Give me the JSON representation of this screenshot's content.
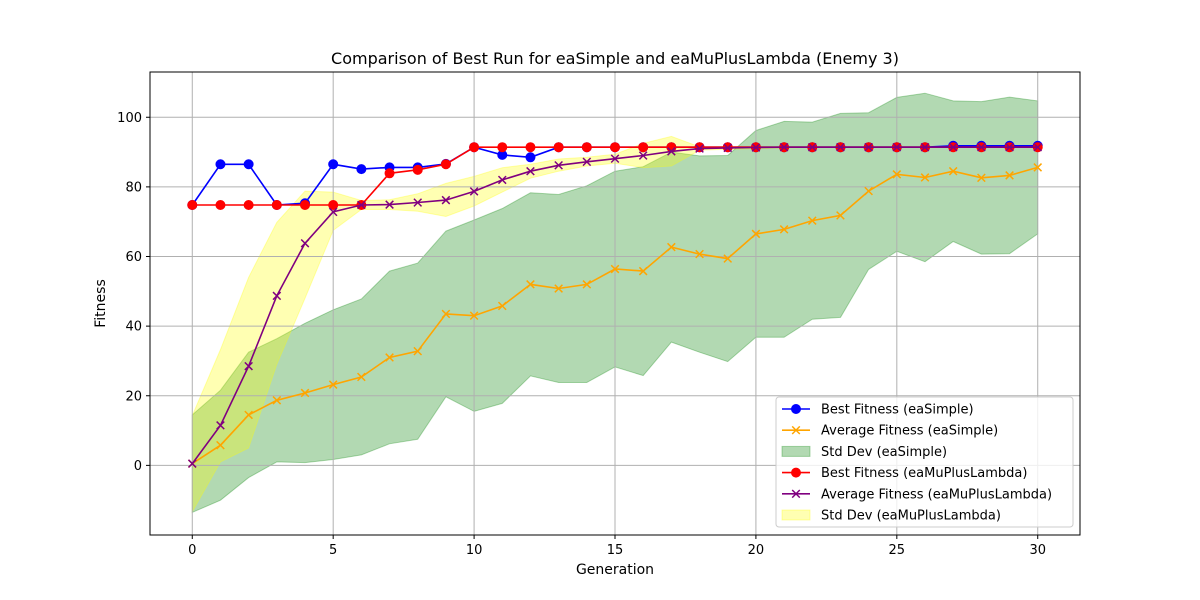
{
  "chart_data": {
    "type": "line",
    "title": "Comparison of Best Run for eaSimple and eaMuPlusLambda (Enemy 3)",
    "xlabel": "Generation",
    "ylabel": "Fitness",
    "xlim": [
      -1.5,
      31.5
    ],
    "ylim": [
      -20,
      113
    ],
    "xticks": [
      0,
      5,
      10,
      15,
      20,
      25,
      30
    ],
    "yticks": [
      0,
      20,
      40,
      60,
      80,
      100
    ],
    "grid": true,
    "legend_position": "lower-right",
    "x": [
      0,
      1,
      2,
      3,
      4,
      5,
      6,
      7,
      8,
      9,
      10,
      11,
      12,
      13,
      14,
      15,
      16,
      17,
      18,
      19,
      20,
      21,
      22,
      23,
      24,
      25,
      26,
      27,
      28,
      29,
      30
    ],
    "series": [
      {
        "name": "Best Fitness (eaSimple)",
        "kind": "line",
        "marker": "o",
        "color": "#0000ff",
        "values": [
          74.8,
          86.5,
          86.5,
          74.8,
          75.3,
          86.5,
          85.1,
          85.6,
          85.6,
          86.6,
          91.4,
          89.2,
          88.5,
          91.4,
          91.4,
          91.4,
          91.4,
          91.4,
          91.4,
          91.4,
          91.4,
          91.4,
          91.4,
          91.4,
          91.4,
          91.4,
          91.4,
          91.8,
          91.8,
          91.8,
          91.8
        ]
      },
      {
        "name": "Average Fitness (eaSimple)",
        "kind": "line",
        "marker": "x",
        "color": "#ffa500",
        "values": [
          0.5,
          5.8,
          14.5,
          18.7,
          20.8,
          23.2,
          25.4,
          31.0,
          32.8,
          43.5,
          43.0,
          45.8,
          52.0,
          50.8,
          52.0,
          56.4,
          55.8,
          62.7,
          60.7,
          59.4,
          66.5,
          67.8,
          70.3,
          71.8,
          78.8,
          83.6,
          82.7,
          84.5,
          82.6,
          83.3,
          85.6
        ]
      },
      {
        "name": "Std Dev (eaSimple)",
        "kind": "band",
        "color": "#008000",
        "alpha": 0.3,
        "lower": [
          -13.5,
          -10.0,
          -3.5,
          1.0,
          0.8,
          1.7,
          3.0,
          6.2,
          7.5,
          19.7,
          15.5,
          17.8,
          25.7,
          23.8,
          23.8,
          28.3,
          25.8,
          35.4,
          32.5,
          29.8,
          36.8,
          36.8,
          42.0,
          42.5,
          56.3,
          61.5,
          58.5,
          64.3,
          60.7,
          60.8,
          66.5
        ],
        "upper": [
          14.5,
          21.6,
          32.5,
          36.4,
          40.8,
          44.7,
          47.8,
          55.8,
          58.1,
          67.3,
          70.5,
          73.8,
          78.3,
          77.8,
          80.3,
          84.5,
          85.8,
          90.0,
          88.9,
          89.0,
          96.2,
          98.8,
          98.6,
          101.1,
          101.3,
          105.7,
          106.9,
          104.7,
          104.5,
          105.8,
          104.7
        ]
      },
      {
        "name": "Best Fitness (eaMuPlusLambda)",
        "kind": "line",
        "marker": "o",
        "color": "#ff0000",
        "values": [
          74.8,
          74.8,
          74.8,
          74.8,
          74.8,
          74.8,
          74.8,
          83.9,
          84.9,
          86.5,
          91.4,
          91.4,
          91.4,
          91.4,
          91.4,
          91.4,
          91.4,
          91.4,
          91.4,
          91.4,
          91.4,
          91.4,
          91.4,
          91.4,
          91.4,
          91.4,
          91.4,
          91.4,
          91.4,
          91.4,
          91.4
        ]
      },
      {
        "name": "Average Fitness (eaMuPlusLambda)",
        "kind": "line",
        "marker": "x",
        "color": "#800080",
        "values": [
          0.5,
          11.5,
          28.5,
          48.7,
          63.8,
          72.8,
          74.8,
          74.9,
          75.5,
          76.2,
          78.7,
          82.0,
          84.5,
          86.2,
          87.2,
          88.1,
          89.0,
          90.2,
          91.0,
          91.2,
          91.3,
          91.4,
          91.4,
          91.4,
          91.4,
          91.4,
          91.4,
          91.4,
          91.4,
          91.4,
          91.4
        ]
      },
      {
        "name": "Std Dev (eaMuPlusLambda)",
        "kind": "band",
        "color": "#ffff00",
        "alpha": 0.3,
        "lower": [
          -13.3,
          1.0,
          5.0,
          29.0,
          48.0,
          67.5,
          73.5,
          73.5,
          73.0,
          71.5,
          74.5,
          78.5,
          82.5,
          84.5,
          86.0,
          86.8,
          85.5,
          86.0,
          90.5,
          90.8,
          91.0,
          91.2,
          91.3,
          91.3,
          91.3,
          91.3,
          91.3,
          91.3,
          91.3,
          91.3,
          91.3
        ],
        "upper": [
          14.3,
          33.3,
          54.0,
          69.8,
          78.8,
          78.5,
          76.1,
          76.3,
          78.0,
          81.0,
          83.0,
          85.5,
          86.5,
          88.0,
          88.5,
          89.4,
          92.5,
          94.5,
          91.5,
          91.6,
          91.6,
          91.6,
          91.5,
          91.5,
          91.5,
          91.5,
          91.5,
          91.5,
          91.5,
          91.5,
          91.5
        ]
      }
    ],
    "legend_order": [
      0,
      1,
      2,
      3,
      4,
      5
    ]
  }
}
